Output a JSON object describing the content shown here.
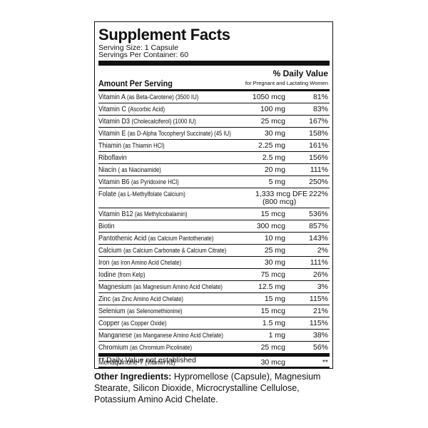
{
  "title": "Supplement Facts",
  "serving_size": "Serving Size: 1 Capsule",
  "servings_per_container": "Servings Per Container: 60",
  "header": {
    "amount": "Amount Per Serving",
    "daily_value": "% Daily Value",
    "daily_value_note": "for Pregnant and Lactating Women"
  },
  "rows": [
    {
      "name": "Vitamin A",
      "detail": "(as Beta-Carotene) (3500 IU)",
      "amount": "1050 mcg",
      "daily_value": "81%"
    },
    {
      "name": "Vitamin C",
      "detail": "(Ascorbic Acid)",
      "amount": "100 mg",
      "daily_value": "83%"
    },
    {
      "name": "Vitamin D3",
      "detail": "(Cholecalciferol) (1000 IU)",
      "amount": "25 mcg",
      "daily_value": "167%"
    },
    {
      "name": "Vitamin E",
      "detail": "(as D-Alpha Tocopheryl Succinate) (45 IU)",
      "amount": "30 mg",
      "daily_value": "158%"
    },
    {
      "name": "Thiamin",
      "detail": "(as Thiamin HCl)",
      "amount": "2.25 mg",
      "daily_value": "161%"
    },
    {
      "name": "Riboflavin",
      "amount": "2.5 mg",
      "daily_value": "156%"
    },
    {
      "name": "Niacin",
      "detail": "( as Niacinamide)",
      "amount": "20 mg",
      "daily_value": "111%"
    },
    {
      "name": "Vitamin B6",
      "detail": "(as Pyridoxine HCl)",
      "amount": "5 mg",
      "daily_value": "250%"
    },
    {
      "name": "Folate",
      "detail": "(as L-Methylfolate Calcium)",
      "amount": "1,333 mcg DFE",
      "amount_note": "(800 mcg)",
      "daily_value": "222%"
    },
    {
      "name": "Vitamin B12",
      "detail": "(as Methylcobalamin)",
      "amount": "15 mcg",
      "daily_value": "536%"
    },
    {
      "name": "Biotin",
      "amount": "300 mcg",
      "daily_value": "857%"
    },
    {
      "name": "Pantothenic Acid",
      "detail": "(as Calcium Pantothenate)",
      "amount": "10 mg",
      "daily_value": "143%"
    },
    {
      "name": "Calcium",
      "detail": "(as Calcium Carbonate & Calcium Citrate)",
      "amount": "25 mg",
      "daily_value": "2%"
    },
    {
      "name": "Iron",
      "detail": "(as Iron Amino Acid Chelate)",
      "amount": "30 mg",
      "daily_value": "111%"
    },
    {
      "name": "Iodine",
      "detail": "(from Kelp)",
      "amount": "75 mcg",
      "daily_value": "26%"
    },
    {
      "name": "Magnesium",
      "detail": "(as Magnesium Amino Acid Chelate)",
      "amount": "12.5 mg",
      "daily_value": "3%"
    },
    {
      "name": "Zinc",
      "detail": "(as Zinc Amino Acid Chelate)",
      "amount": "15 mg",
      "daily_value": "115%"
    },
    {
      "name": "Selenium",
      "detail": "(as Selenomethionine)",
      "amount": "15 mcg",
      "daily_value": "21%"
    },
    {
      "name": "Copper",
      "detail": "(as Copper Oxide)",
      "amount": "1.5 mg",
      "daily_value": "115%"
    },
    {
      "name": "Manganese",
      "detail": "(as Manganese Amino Acid Chelate)",
      "amount": "1 mg",
      "daily_value": "38%"
    },
    {
      "name": "Chromium",
      "detail": "(as Chromium Picolinate)",
      "amount": "25 mcg",
      "daily_value": "56%"
    },
    {
      "name": "Menaquinone-7",
      "detail": "(Vitamin K2)",
      "amount": "30 mcg",
      "daily_value": "**"
    }
  ],
  "footnote": "** Daily Value not established",
  "other_ingredients": {
    "label": "Other Ingredients:",
    "text": "Hypromellose (Capsule), Magnesium Stearate, Silicon Dioxide, Microcrystalline Cellulose, Potassium Amino Acid Chelate."
  }
}
